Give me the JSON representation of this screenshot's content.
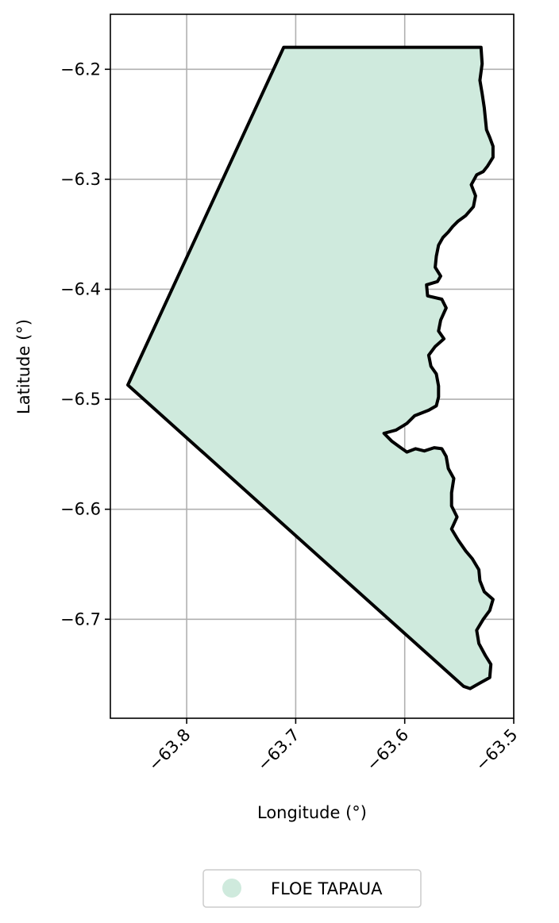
{
  "chart_data": {
    "type": "map",
    "xlabel": "Longitude (°)",
    "ylabel": "Latitude (°)",
    "xlim": [
      -63.87,
      -63.5
    ],
    "ylim": [
      -6.79,
      -6.15
    ],
    "x_ticks": [
      -63.8,
      -63.7,
      -63.6,
      -63.5
    ],
    "y_ticks": [
      -6.2,
      -6.3,
      -6.4,
      -6.5,
      -6.6,
      -6.7
    ],
    "x_tick_labels": [
      "−63.8",
      "−63.7",
      "−63.6",
      "−63.5"
    ],
    "y_tick_labels": [
      "−6.2",
      "−6.3",
      "−6.4",
      "−6.5",
      "−6.6",
      "−6.7"
    ],
    "grid": true,
    "legend_position": "bottom-center",
    "series": [
      {
        "name": "FLOE TAPAUA",
        "color": "#cfeadd",
        "edge_color": "#000000",
        "polygon": [
          [
            -63.711,
            -6.18
          ],
          [
            -63.53,
            -6.18
          ],
          [
            -63.529,
            -6.195
          ],
          [
            -63.531,
            -6.21
          ],
          [
            -63.529,
            -6.222
          ],
          [
            -63.527,
            -6.235
          ],
          [
            -63.526,
            -6.245
          ],
          [
            -63.525,
            -6.255
          ],
          [
            -63.522,
            -6.262
          ],
          [
            -63.519,
            -6.27
          ],
          [
            -63.519,
            -6.28
          ],
          [
            -63.524,
            -6.288
          ],
          [
            -63.528,
            -6.293
          ],
          [
            -63.534,
            -6.296
          ],
          [
            -63.539,
            -6.305
          ],
          [
            -63.535,
            -6.315
          ],
          [
            -63.537,
            -6.325
          ],
          [
            -63.544,
            -6.333
          ],
          [
            -63.551,
            -6.338
          ],
          [
            -63.556,
            -6.343
          ],
          [
            -63.56,
            -6.348
          ],
          [
            -63.565,
            -6.353
          ],
          [
            -63.569,
            -6.36
          ],
          [
            -63.571,
            -6.37
          ],
          [
            -63.572,
            -6.38
          ],
          [
            -63.567,
            -6.388
          ],
          [
            -63.57,
            -6.393
          ],
          [
            -63.58,
            -6.396
          ],
          [
            -63.579,
            -6.406
          ],
          [
            -63.566,
            -6.409
          ],
          [
            -63.562,
            -6.417
          ],
          [
            -63.567,
            -6.428
          ],
          [
            -63.569,
            -6.438
          ],
          [
            -63.564,
            -6.445
          ],
          [
            -63.572,
            -6.452
          ],
          [
            -63.578,
            -6.46
          ],
          [
            -63.576,
            -6.47
          ],
          [
            -63.571,
            -6.477
          ],
          [
            -63.569,
            -6.488
          ],
          [
            -63.569,
            -6.498
          ],
          [
            -63.571,
            -6.506
          ],
          [
            -63.578,
            -6.51
          ],
          [
            -63.591,
            -6.515
          ],
          [
            -63.598,
            -6.522
          ],
          [
            -63.608,
            -6.528
          ],
          [
            -63.619,
            -6.531
          ],
          [
            -63.612,
            -6.538
          ],
          [
            -63.605,
            -6.543
          ],
          [
            -63.598,
            -6.548
          ],
          [
            -63.59,
            -6.545
          ],
          [
            -63.582,
            -6.547
          ],
          [
            -63.573,
            -6.544
          ],
          [
            -63.566,
            -6.545
          ],
          [
            -63.562,
            -6.552
          ],
          [
            -63.56,
            -6.563
          ],
          [
            -63.555,
            -6.572
          ],
          [
            -63.557,
            -6.585
          ],
          [
            -63.557,
            -6.597
          ],
          [
            -63.552,
            -6.607
          ],
          [
            -63.557,
            -6.618
          ],
          [
            -63.551,
            -6.628
          ],
          [
            -63.544,
            -6.638
          ],
          [
            -63.538,
            -6.645
          ],
          [
            -63.532,
            -6.655
          ],
          [
            -63.531,
            -6.665
          ],
          [
            -63.527,
            -6.675
          ],
          [
            -63.519,
            -6.682
          ],
          [
            -63.522,
            -6.692
          ],
          [
            -63.528,
            -6.7
          ],
          [
            -63.534,
            -6.71
          ],
          [
            -63.532,
            -6.722
          ],
          [
            -63.526,
            -6.733
          ],
          [
            -63.521,
            -6.741
          ],
          [
            -63.522,
            -6.753
          ],
          [
            -63.531,
            -6.758
          ],
          [
            -63.54,
            -6.763
          ],
          [
            -63.546,
            -6.761
          ],
          [
            -63.854,
            -6.487
          ]
        ]
      }
    ]
  }
}
